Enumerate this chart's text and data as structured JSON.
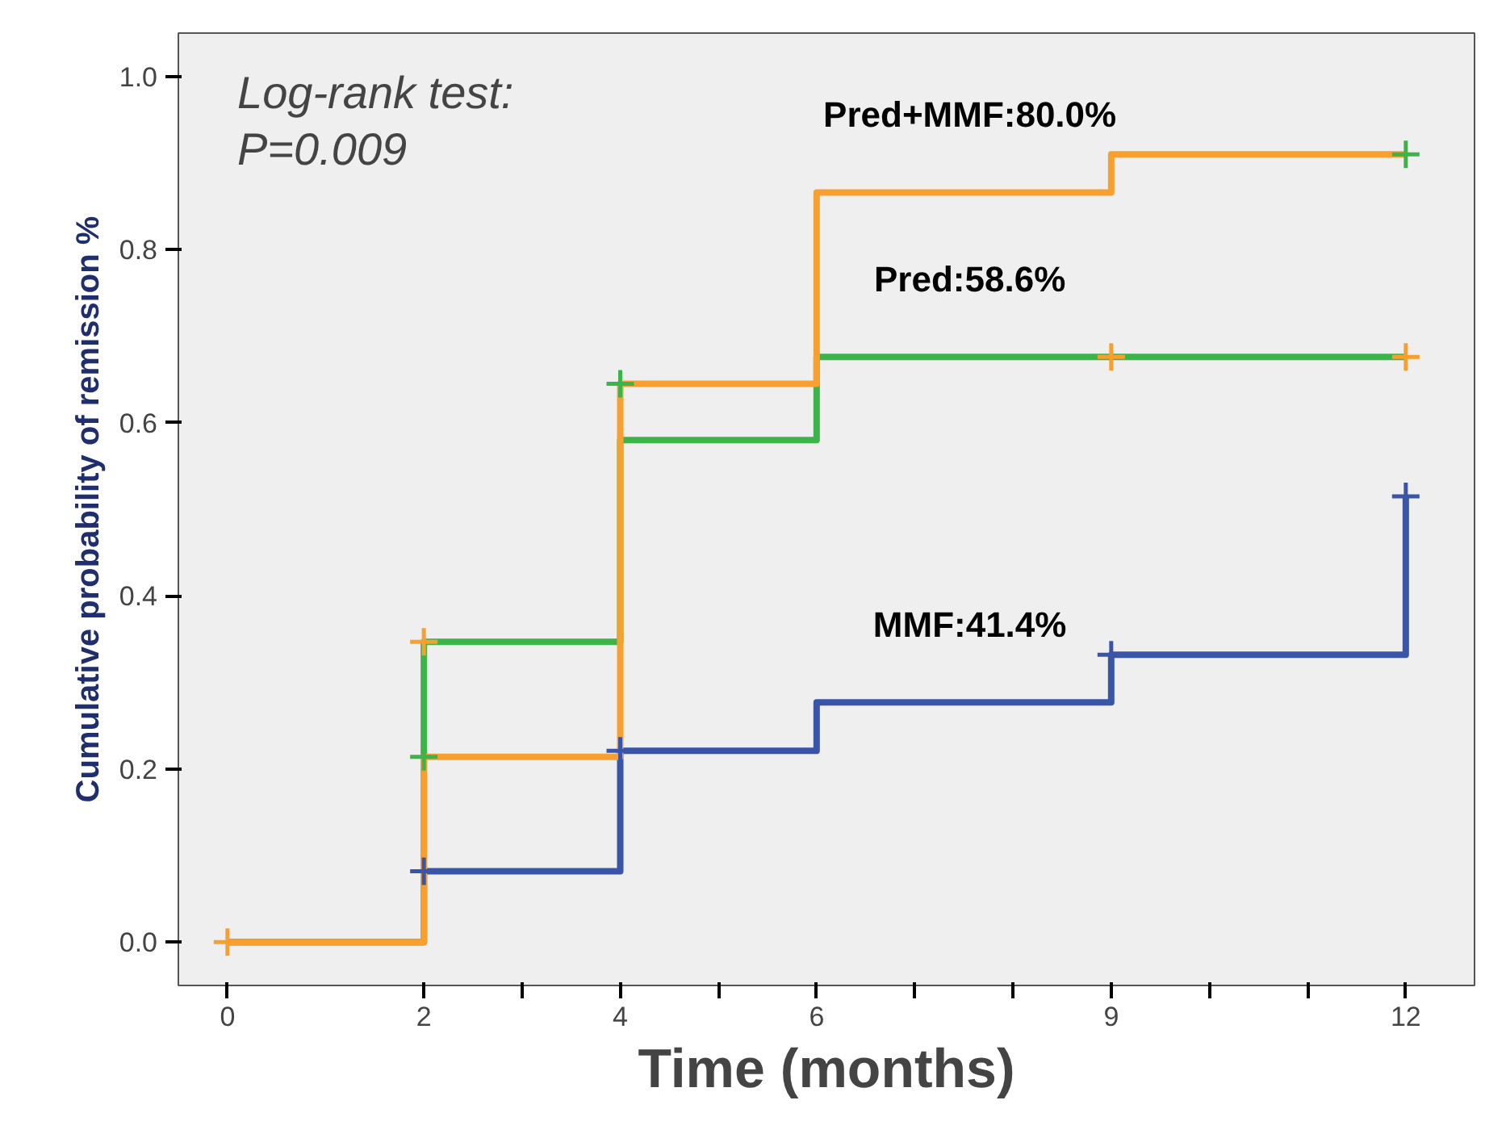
{
  "chart_data": {
    "type": "step",
    "xlabel": "Time (months)",
    "ylabel": "Cumulative probability of remission %",
    "xlim": [
      -0.5,
      12.7
    ],
    "ylim": [
      -0.05,
      1.05
    ],
    "xticks": [
      0,
      2,
      4,
      6,
      9,
      12,
      {
        "value": 3,
        "label": null
      },
      {
        "value": 5,
        "label": null
      },
      {
        "value": 7,
        "label": null
      },
      {
        "value": 8,
        "label": null
      },
      {
        "value": 10,
        "label": null
      },
      {
        "value": 11,
        "label": null
      }
    ],
    "yticks": [
      {
        "value": 0,
        "label": "0.0"
      },
      {
        "value": 0.2,
        "label": "0.2"
      },
      {
        "value": 0.4,
        "label": "0.4"
      },
      {
        "value": 0.6,
        "label": "0.6"
      },
      {
        "value": 0.8,
        "label": "0.8"
      },
      {
        "value": 1,
        "label": "1.0"
      }
    ],
    "grid": false,
    "series": [
      {
        "name": "MMF:41.4%",
        "color": "#3a55a8",
        "x": [
          0,
          2,
          4,
          6,
          9,
          12
        ],
        "values": [
          0,
          0.082,
          0.221,
          0.277,
          0.332,
          0.515
        ]
      },
      {
        "name": "Pred:58.6%",
        "color": "#3cb44a",
        "x": [
          0,
          2,
          4,
          6,
          12
        ],
        "values": [
          0,
          0.347,
          0.58,
          0.676,
          0.676
        ]
      },
      {
        "name": "Pred+MMF:80.0%",
        "color": "#f7a030",
        "x": [
          0,
          2,
          4,
          6,
          9,
          12
        ],
        "values": [
          0,
          0.214,
          0.645,
          0.866,
          0.91,
          0.91
        ]
      },
      {
        "type": "scatter",
        "marker": "cross",
        "color": "#3a55a8",
        "x": [
          2,
          4,
          9,
          12
        ],
        "values": [
          0.082,
          0.221,
          0.332,
          0.515
        ]
      },
      {
        "type": "scatter",
        "marker": "cross",
        "color": "#3cb44a",
        "x": [
          2,
          4,
          12
        ],
        "values": [
          0.214,
          0.645,
          0.91
        ]
      },
      {
        "type": "scatter",
        "marker": "cross",
        "color": "#f7a030",
        "x": [
          0,
          2,
          9,
          12
        ],
        "values": [
          0,
          0.347,
          0.676,
          0.676
        ]
      }
    ],
    "annotations": [
      "Log-rank  test:\nP=0.009"
    ]
  }
}
